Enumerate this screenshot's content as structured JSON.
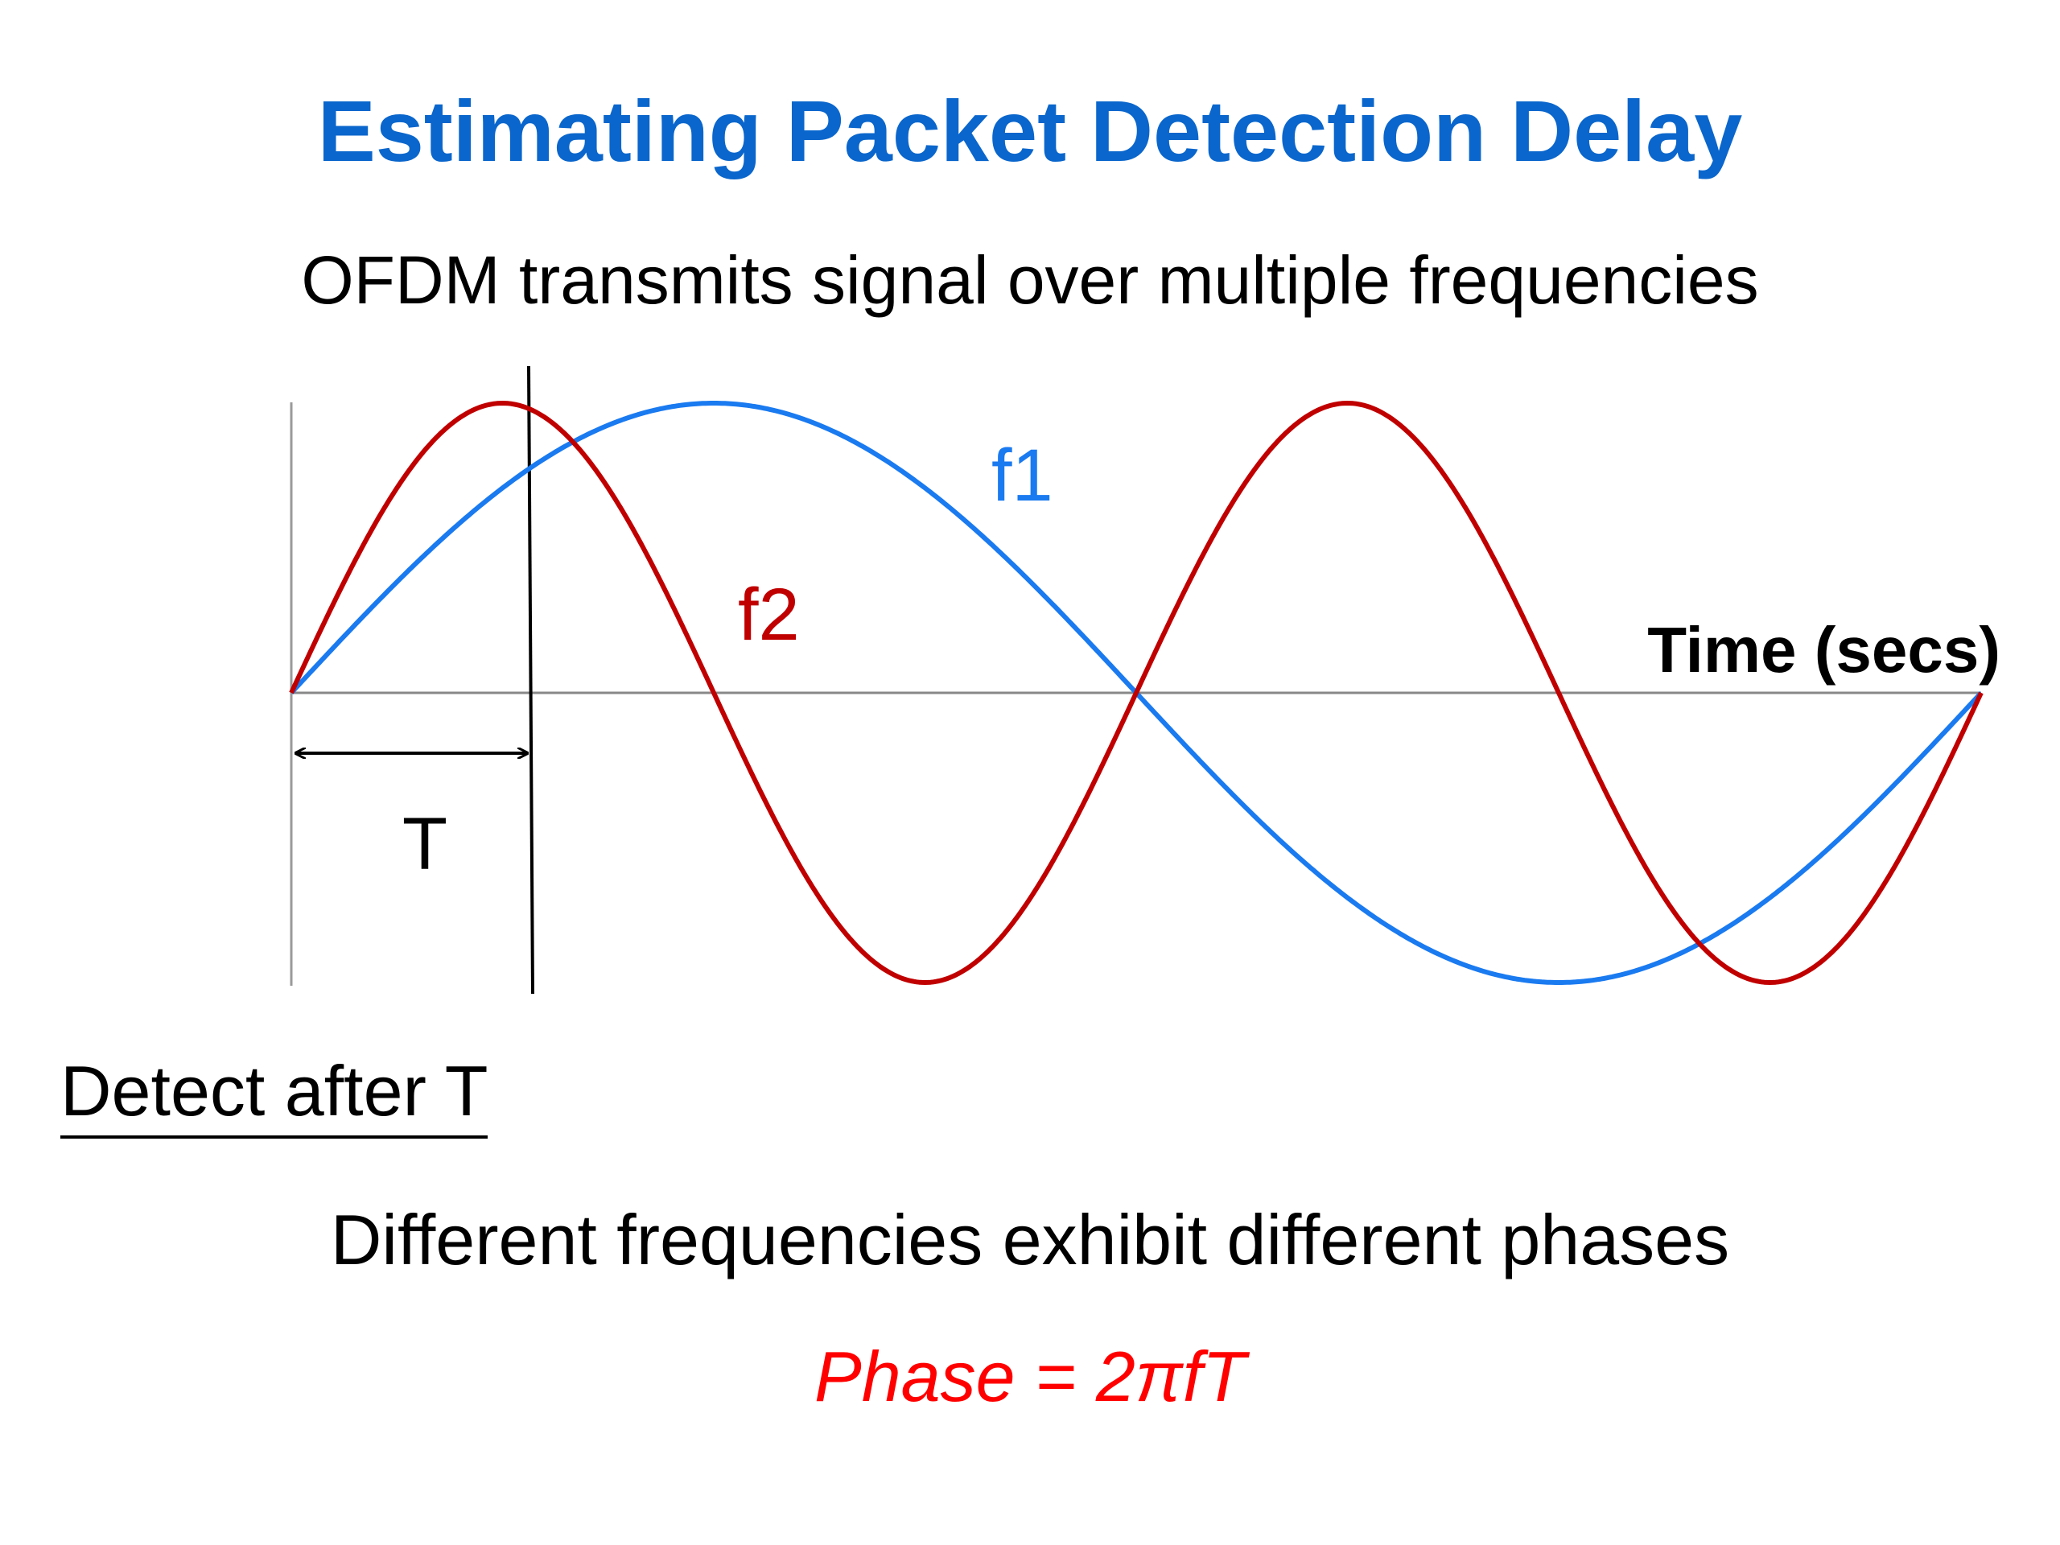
{
  "slide": {
    "title": "Estimating Packet Detection Delay",
    "subtitle": "OFDM transmits signal over multiple frequencies",
    "detect_label": "Detect after T",
    "statement": "Different frequencies exhibit different phases",
    "formula": "Phase = 2πfT"
  },
  "diagram": {
    "axis_label": "Time (secs)",
    "delay_label": "T",
    "waves": [
      {
        "name": "f1",
        "label": "f1",
        "cycles": 1,
        "color": "#1a7af0"
      },
      {
        "name": "f2",
        "label": "f2",
        "cycles": 2,
        "color": "#c00000"
      }
    ],
    "delay_fraction_of_period": 0.14,
    "axis_color": "#888888",
    "text_colors": {
      "title": "#0a66cc",
      "formula": "#ff0000"
    }
  }
}
